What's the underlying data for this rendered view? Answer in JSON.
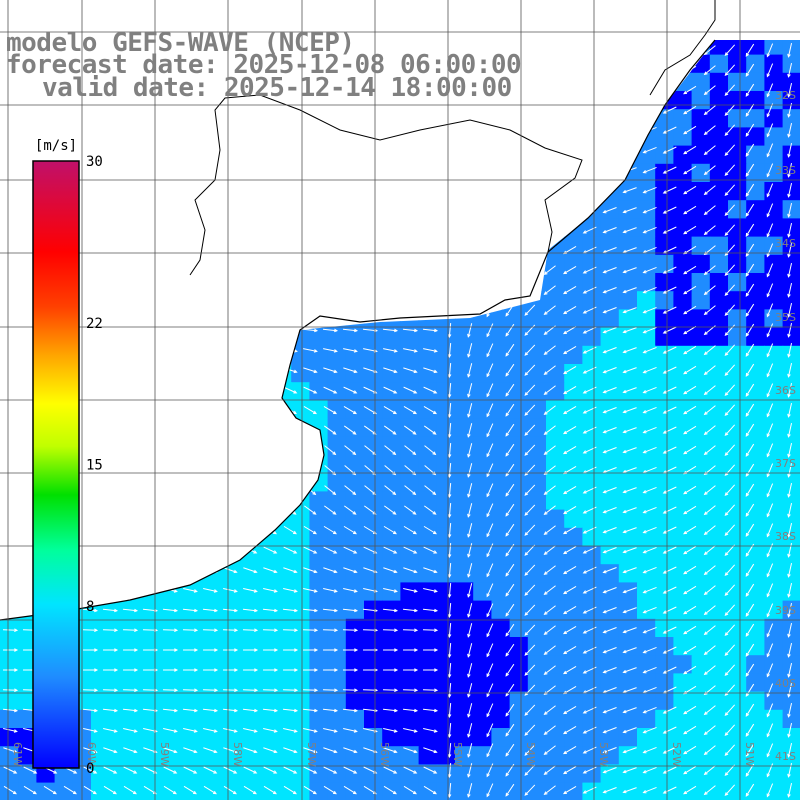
{
  "header": {
    "model_line": "modelo GEFS-WAVE (NCEP)",
    "forecast_line": "forecast date: 2025-12-08 06:00:00",
    "valid_line": "valid date: 2025-12-14 18:00:00"
  },
  "colorbar": {
    "unit": "[m/s]",
    "ticks": [
      "30",
      "22",
      "15",
      "8",
      "0"
    ],
    "tick_values": [
      30,
      22,
      15,
      8,
      0
    ],
    "min": 0,
    "max": 30,
    "colors": [
      "#0000ff",
      "#1f8cff",
      "#00e5ff",
      "#00ff9a",
      "#00e000",
      "#c0ff00",
      "#ffff00",
      "#ffa500",
      "#ff4000",
      "#ff0000",
      "#c0106a"
    ]
  },
  "grid": {
    "lat_labels": [
      "32S",
      "33S",
      "34S",
      "35S",
      "36S",
      "37S",
      "38S",
      "39S",
      "40S",
      "41S"
    ],
    "lon_labels": [
      "61W",
      "60W",
      "59W",
      "58W",
      "57W",
      "56W",
      "55W",
      "54W",
      "53W",
      "52W",
      "51W"
    ]
  },
  "colors": {
    "land": "#ffffff",
    "coast": "#000000",
    "gridline": "#555555",
    "arrow": "#ffffff",
    "label": "#808080"
  }
}
